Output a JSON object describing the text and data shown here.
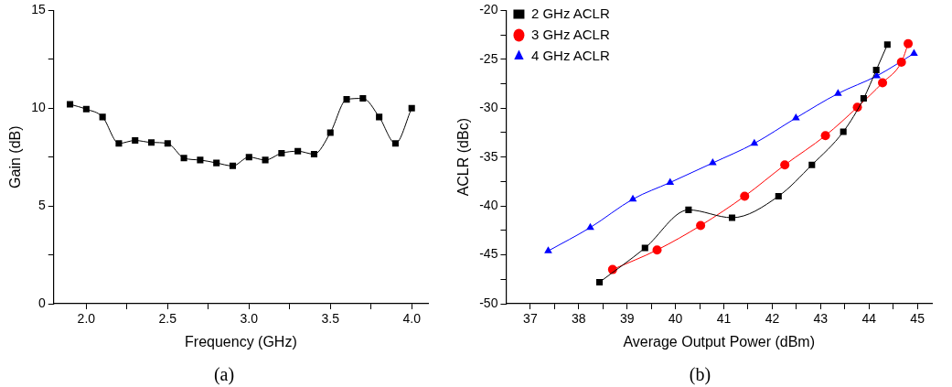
{
  "chart_data": [
    {
      "type": "line",
      "xlabel": "Frequency (GHz)",
      "ylabel": "Gain (dB)",
      "annotations": [
        "(a)"
      ],
      "marker": "square",
      "grid": false,
      "legend": false,
      "x": [
        1.9,
        2.0,
        2.1,
        2.2,
        2.3,
        2.4,
        2.5,
        2.6,
        2.7,
        2.8,
        2.9,
        3.0,
        3.1,
        3.2,
        3.3,
        3.4,
        3.5,
        3.6,
        3.7,
        3.8,
        3.9,
        4.0
      ],
      "series": [
        {
          "color": "#000000",
          "values": [
            10.2,
            9.95,
            9.55,
            8.2,
            8.35,
            8.25,
            8.2,
            7.45,
            7.35,
            7.2,
            7.05,
            7.5,
            7.35,
            7.7,
            7.8,
            7.65,
            8.75,
            10.45,
            10.5,
            9.55,
            8.2,
            10.0
          ]
        }
      ],
      "xlim": [
        1.8,
        4.1
      ],
      "ylim": [
        0,
        15
      ],
      "xticks": [
        {
          "value": 2,
          "label": "2.0"
        },
        {
          "value": 2.25,
          "label": null
        },
        {
          "value": 2.5,
          "label": "2.5"
        },
        {
          "value": 2.75,
          "label": null
        },
        {
          "value": 3,
          "label": "3.0"
        },
        {
          "value": 3.25,
          "label": null
        },
        {
          "value": 3.5,
          "label": "3.5"
        },
        {
          "value": 3.75,
          "label": null
        },
        {
          "value": 4,
          "label": "4.0"
        }
      ],
      "yticks": [
        0,
        {
          "value": 2.5,
          "label": null
        },
        5,
        {
          "value": 7.5,
          "label": null
        },
        10,
        {
          "value": 12.5,
          "label": null
        },
        15
      ]
    },
    {
      "type": "line",
      "xlabel": "Average Output Power (dBm)",
      "ylabel": "ACLR (dBc)",
      "annotations": [
        "(b)"
      ],
      "grid": false,
      "legend": "top left",
      "series": [
        {
          "name": "2 GHz ACLR",
          "color": "#000000",
          "marker": "square",
          "x": [
            38.43,
            39.37,
            40.27,
            41.17,
            42.13,
            42.82,
            43.47,
            43.89,
            44.15,
            44.38
          ],
          "values": [
            -47.8,
            -44.3,
            -40.4,
            -41.2,
            -39.0,
            -35.8,
            -32.4,
            -29.0,
            -26.1,
            -23.5
          ]
        },
        {
          "name": "3 GHz ACLR",
          "color": "#ff0000",
          "marker": "circle",
          "x": [
            38.7,
            39.62,
            40.52,
            41.43,
            42.26,
            43.1,
            43.76,
            44.28,
            44.67,
            44.81
          ],
          "values": [
            -46.5,
            -44.5,
            -42.0,
            -39.0,
            -35.8,
            -32.8,
            -29.9,
            -27.4,
            -25.3,
            -23.4
          ]
        },
        {
          "name": "4 GHz ACLR",
          "color": "#0000ff",
          "marker": "triangle",
          "x": [
            37.37,
            38.24,
            39.12,
            39.89,
            40.77,
            41.63,
            42.49,
            43.36,
            44.16,
            44.93
          ],
          "values": [
            -44.6,
            -42.2,
            -39.3,
            -37.6,
            -35.6,
            -33.6,
            -31.0,
            -28.5,
            -26.7,
            -24.4
          ]
        }
      ],
      "xlim": [
        36.5,
        45.3
      ],
      "ylim": [
        -50,
        -20
      ],
      "xticks": [
        37,
        {
          "value": 37.5,
          "label": null
        },
        38,
        {
          "value": 38.5,
          "label": null
        },
        39,
        {
          "value": 39.5,
          "label": null
        },
        40,
        {
          "value": 40.5,
          "label": null
        },
        41,
        {
          "value": 41.5,
          "label": null
        },
        42,
        {
          "value": 42.5,
          "label": null
        },
        43,
        {
          "value": 43.5,
          "label": null
        },
        44,
        {
          "value": 44.5,
          "label": null
        },
        45
      ],
      "yticks": [
        -50,
        {
          "value": -47.5,
          "label": null
        },
        -45,
        {
          "value": -42.5,
          "label": null
        },
        -40,
        {
          "value": -37.5,
          "label": null
        },
        -35,
        {
          "value": -32.5,
          "label": null
        },
        -30,
        {
          "value": -27.5,
          "label": null
        },
        -25,
        {
          "value": -22.5,
          "label": null
        },
        -20
      ]
    }
  ]
}
